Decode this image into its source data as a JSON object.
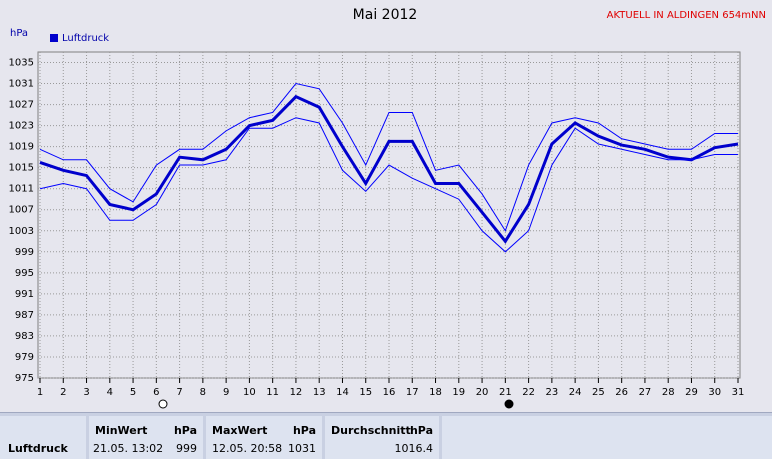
{
  "chart_data": {
    "type": "line",
    "title": "Mai 2012",
    "annotation": "AKTUELL IN ALDINGEN 654mNN",
    "y_label": "hPa",
    "categories": [
      "1",
      "2",
      "3",
      "4",
      "5",
      "6",
      "7",
      "8",
      "9",
      "10",
      "11",
      "12",
      "13",
      "14",
      "15",
      "16",
      "17",
      "18",
      "19",
      "20",
      "21",
      "22",
      "23",
      "24",
      "25",
      "26",
      "27",
      "28",
      "29",
      "30",
      "31"
    ],
    "series": [
      {
        "name": "Luftdruck",
        "color": "#0000cc",
        "values": [
          1016,
          1014.5,
          1013.5,
          1008,
          1007,
          1010,
          1017,
          1016.5,
          1018.5,
          1023,
          1024,
          1028.5,
          1026.5,
          1019,
          1012,
          1020,
          1020,
          1012,
          1012,
          1006.5,
          1001,
          1008,
          1019.5,
          1023.5,
          1021,
          1019.3,
          1018.5,
          1017,
          1016.5,
          1018.8,
          1019.5
        ]
      },
      {
        "color": "#0000ff",
        "values": [
          1018.5,
          1016.5,
          1016.5,
          1011,
          1008.5,
          1015.5,
          1018.5,
          1018.5,
          1022,
          1024.5,
          1025.5,
          1031,
          1030,
          1023.5,
          1015.5,
          1025.5,
          1025.5,
          1014.5,
          1015.5,
          1010,
          1003,
          1015.5,
          1023.5,
          1024.5,
          1023.5,
          1020.5,
          1019.5,
          1018.5,
          1018.5,
          1021.5,
          1021.5
        ]
      },
      {
        "color": "#0000ff",
        "values": [
          1011,
          1012,
          1011,
          1005,
          1005,
          1008,
          1015.5,
          1015.5,
          1016.5,
          1022.5,
          1022.5,
          1024.5,
          1023.5,
          1014.5,
          1010.5,
          1015.5,
          1013,
          1011,
          1009,
          1003,
          999,
          1003,
          1015.5,
          1022.5,
          1019.5,
          1018.5,
          1017.5,
          1016.5,
          1016.5,
          1017.5,
          1017.5
        ]
      }
    ],
    "ylim": [
      975,
      1037
    ],
    "yticks": [
      975,
      979,
      983,
      987,
      991,
      995,
      999,
      1003,
      1007,
      1011,
      1015,
      1019,
      1023,
      1027,
      1031,
      1035
    ],
    "grid": true
  },
  "table": {
    "header": [
      "MinWert",
      "hPa",
      "MaxWert",
      "hPa",
      "Durchschnitt",
      "hPa"
    ],
    "rows": [
      [
        "Luftdruck",
        "21.05.  13:02",
        "999",
        "12.05.  20:58",
        "1031",
        "1016.4"
      ]
    ]
  }
}
